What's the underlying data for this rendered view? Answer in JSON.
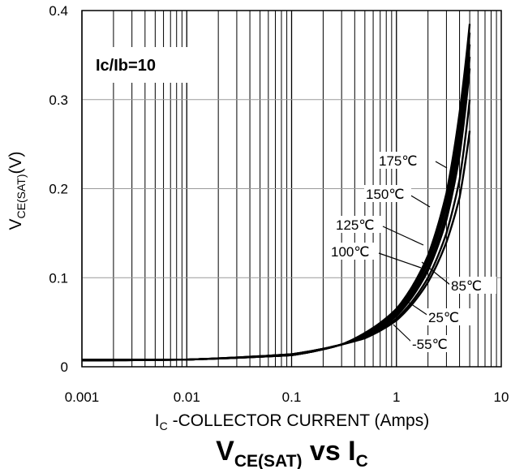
{
  "chart_data": {
    "type": "line",
    "title_main": "V",
    "title_sub": "CE(SAT)",
    "title_mid": " vs I",
    "title_sub2": "C",
    "xlabel_main": "I",
    "xlabel_sub": "C",
    "xlabel_rest": " -COLLECTOR CURRENT (Amps)",
    "ylabel_main": "V",
    "ylabel_sub": "CE(SAT)",
    "ylabel_rest": "(V)",
    "annotation": "Ic/Ib=10",
    "x_scale": "log",
    "xlim": [
      0.001,
      10
    ],
    "ylim": [
      0,
      0.4
    ],
    "x_ticks": [
      "0.001",
      "0.01",
      "0.1",
      "1",
      "10"
    ],
    "y_ticks": [
      "0",
      "0.1",
      "0.2",
      "0.3",
      "0.4"
    ],
    "grid": true,
    "series": [
      {
        "name": "175℃",
        "x": [
          0.001,
          0.01,
          0.1,
          0.3,
          0.5,
          1,
          2,
          3,
          4,
          5
        ],
        "y": [
          0.008,
          0.008,
          0.014,
          0.025,
          0.038,
          0.065,
          0.125,
          0.195,
          0.285,
          0.385
        ]
      },
      {
        "name": "150℃",
        "x": [
          0.001,
          0.01,
          0.1,
          0.3,
          0.5,
          1,
          2,
          3,
          4,
          5
        ],
        "y": [
          0.008,
          0.008,
          0.014,
          0.025,
          0.037,
          0.063,
          0.121,
          0.188,
          0.272,
          0.375
        ]
      },
      {
        "name": "125℃",
        "x": [
          0.001,
          0.01,
          0.1,
          0.3,
          0.5,
          1,
          2,
          3,
          4,
          5
        ],
        "y": [
          0.008,
          0.008,
          0.014,
          0.025,
          0.036,
          0.061,
          0.117,
          0.18,
          0.26,
          0.362
        ]
      },
      {
        "name": "100℃",
        "x": [
          0.001,
          0.01,
          0.1,
          0.3,
          0.5,
          1,
          2,
          3,
          4,
          5
        ],
        "y": [
          0.007,
          0.008,
          0.013,
          0.025,
          0.035,
          0.059,
          0.112,
          0.172,
          0.248,
          0.348
        ]
      },
      {
        "name": "85℃",
        "x": [
          0.001,
          0.01,
          0.1,
          0.3,
          0.5,
          1,
          2,
          3,
          4,
          5
        ],
        "y": [
          0.007,
          0.008,
          0.013,
          0.025,
          0.034,
          0.057,
          0.108,
          0.165,
          0.237,
          0.335
        ]
      },
      {
        "name": "25℃",
        "x": [
          0.001,
          0.01,
          0.1,
          0.3,
          0.5,
          1,
          2,
          3,
          4,
          5
        ],
        "y": [
          0.007,
          0.008,
          0.013,
          0.025,
          0.033,
          0.054,
          0.1,
          0.15,
          0.21,
          0.3
        ]
      },
      {
        "name": "-55℃",
        "x": [
          0.001,
          0.01,
          0.1,
          0.3,
          0.5,
          1,
          2,
          3,
          4,
          5
        ],
        "y": [
          0.007,
          0.008,
          0.013,
          0.025,
          0.032,
          0.052,
          0.095,
          0.14,
          0.19,
          0.265
        ]
      }
    ]
  }
}
